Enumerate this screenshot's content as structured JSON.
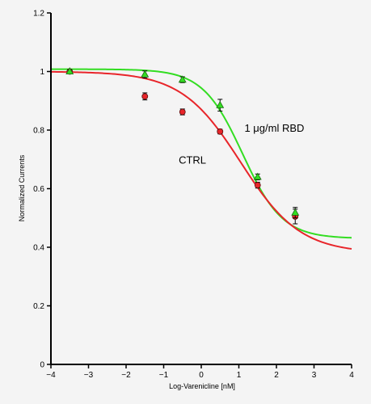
{
  "chart_data": {
    "type": "scatter",
    "title": "",
    "xlabel": "Log-Varenicline [nM]",
    "ylabel": "Normalized Currents",
    "xlim": [
      -4,
      4
    ],
    "ylim": [
      0,
      1.2
    ],
    "x_ticks": [
      -4,
      -3,
      -2,
      -1,
      0,
      1,
      2,
      3,
      4
    ],
    "x_tick_labels": [
      "−4",
      "−3",
      "−2",
      "−1",
      "0",
      "1",
      "2",
      "3",
      "4"
    ],
    "y_ticks": [
      0,
      0.2,
      0.4,
      0.6,
      0.8,
      1,
      1.2
    ],
    "y_tick_labels": [
      "0",
      "0.2",
      "0.4",
      "0.6",
      "0.8",
      "1",
      "1.2"
    ],
    "grid": false,
    "series": [
      {
        "name": "CTRL",
        "color": "#e8252a",
        "marker": "circle",
        "x": [
          -3.5,
          -1.5,
          -0.5,
          0.5,
          1.5,
          2.5
        ],
        "y": [
          1.0,
          0.915,
          0.862,
          0.795,
          0.612,
          0.505
        ],
        "err": [
          0.006,
          0.012,
          0.01,
          0.008,
          0.01,
          0.025
        ],
        "fit": {
          "top": 1.0,
          "bottom": 0.38,
          "log_ic50": 1.05,
          "hill": 0.55
        }
      },
      {
        "name": "1 μg/ml RBD",
        "color": "#33dd22",
        "marker": "triangle",
        "x": [
          -3.5,
          -1.5,
          -0.5,
          0.5,
          1.5,
          2.5
        ],
        "y": [
          1.0,
          0.99,
          0.972,
          0.885,
          0.64,
          0.518
        ],
        "err": [
          0.006,
          0.012,
          0.01,
          0.02,
          0.01,
          0.018
        ],
        "fit": {
          "top": 1.008,
          "bottom": 0.43,
          "log_ic50": 1.1,
          "hill": 0.82
        }
      }
    ],
    "annotations": [
      {
        "text": "1 μg/ml RBD",
        "x": 1.15,
        "y": 0.795
      },
      {
        "text": "CTRL",
        "x": -0.6,
        "y": 0.685
      }
    ]
  }
}
